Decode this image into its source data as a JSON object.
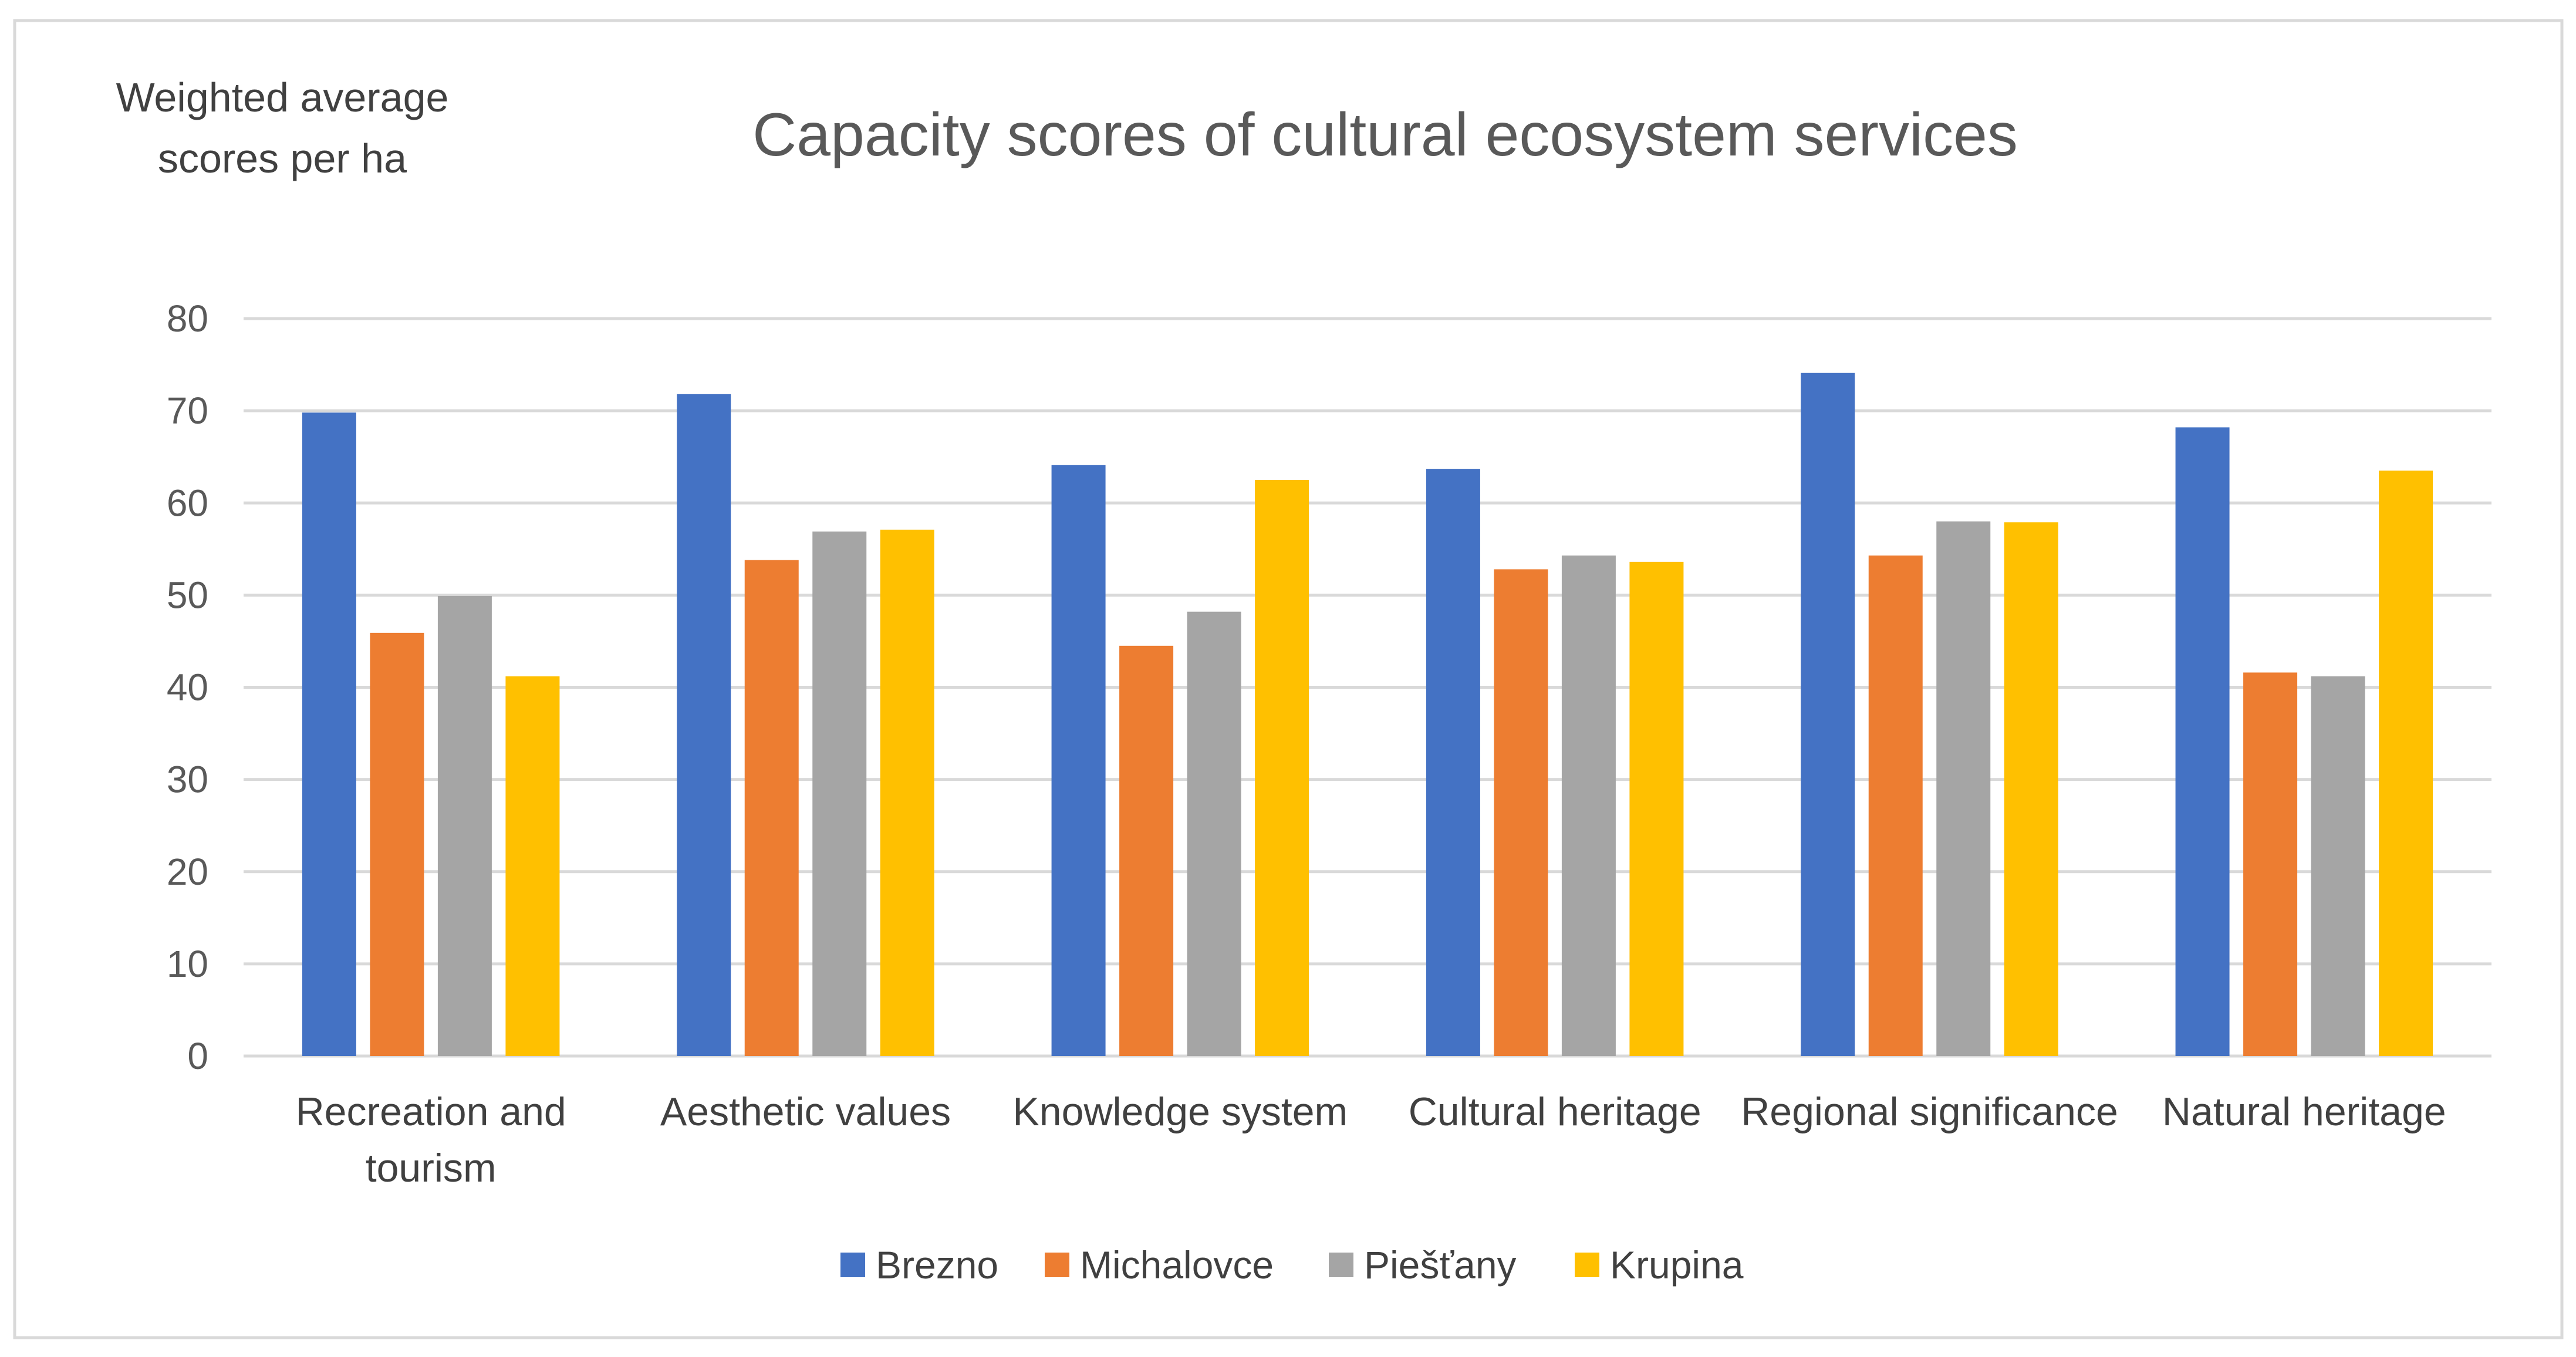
{
  "chart_data": {
    "type": "bar",
    "title": "Capacity scores of cultural ecosystem services",
    "ylabel_lines": [
      "Weighted average",
      "scores per ha"
    ],
    "xlabel": "",
    "ylim": [
      0,
      80
    ],
    "yticks": [
      0,
      10,
      20,
      30,
      40,
      50,
      60,
      70,
      80
    ],
    "grid": true,
    "legend_position": "bottom",
    "categories": [
      [
        "Recreation and",
        "tourism"
      ],
      [
        "Aesthetic values"
      ],
      [
        "Knowledge system"
      ],
      [
        "Cultural heritage"
      ],
      [
        "Regional significance"
      ],
      [
        "Natural heritage"
      ]
    ],
    "series": [
      {
        "name": "Brezno",
        "color": "#4472C4",
        "values": [
          69.8,
          71.8,
          64.1,
          63.7,
          74.1,
          68.2
        ]
      },
      {
        "name": "Michalovce",
        "color": "#ED7D31",
        "values": [
          45.9,
          53.8,
          44.5,
          52.8,
          54.3,
          41.6
        ]
      },
      {
        "name": "Piešťany",
        "color": "#A5A5A5",
        "values": [
          49.9,
          56.9,
          48.2,
          54.3,
          58.0,
          41.2
        ]
      },
      {
        "name": "Krupina",
        "color": "#FFC000",
        "values": [
          41.2,
          57.1,
          62.5,
          53.6,
          57.9,
          63.5
        ]
      }
    ]
  }
}
